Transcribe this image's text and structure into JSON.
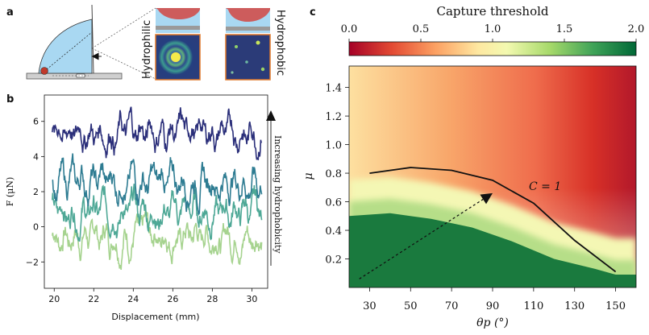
{
  "panels": {
    "a": {
      "letter": "a",
      "label_hydrophilic": "Hydrophilic",
      "label_hydrophobic": "Hydrophobic"
    },
    "b": {
      "letter": "b",
      "xlabel": "Displacement (mm)",
      "ylabel": "F (μN)",
      "annotation": "Increasing hydrophobicity"
    },
    "c": {
      "letter": "c",
      "colorbar_title": "Capture threshold",
      "xlabel": "θp (°)",
      "ylabel": "μ",
      "curve_label": "C = 1"
    }
  },
  "colors": {
    "trace_1": "#a6d38f",
    "trace_2": "#4ea896",
    "trace_3": "#2e7c92",
    "trace_4": "#2b2f7a",
    "heatmap_low": "#b2182b",
    "heatmap_mid": "#ffffbf",
    "heatmap_high": "#1a7a3e",
    "droplet": "#a9d8f2",
    "particle": "#c0392b"
  },
  "chart_data": [
    {
      "type": "line",
      "panel": "b",
      "x_range": [
        19.5,
        30.8
      ],
      "ylim": [
        -3.5,
        7.5
      ],
      "xticks": [
        "20",
        "22",
        "24",
        "26",
        "28",
        "30"
      ],
      "yticks": [
        "−2",
        "0",
        "2",
        "4",
        "6"
      ],
      "xlabel": "Displacement (mm)",
      "ylabel": "F (μN)",
      "series": [
        {
          "mean": -0.5,
          "amplitude": 1.1,
          "color": "#a6d38f"
        },
        {
          "mean": 0.9,
          "amplitude": 1.2,
          "color": "#4ea896"
        },
        {
          "mean": 2.6,
          "amplitude": 1.2,
          "color": "#2e7c92"
        },
        {
          "mean": 5.4,
          "amplitude": 1.1,
          "color": "#2b2f7a"
        }
      ]
    },
    {
      "type": "heatmap",
      "panel": "c",
      "x_range": [
        20,
        160
      ],
      "ylim": [
        0,
        1.55
      ],
      "xticks": [
        "30",
        "50",
        "70",
        "90",
        "110",
        "130",
        "150"
      ],
      "yticks": [
        "0.2",
        "0.4",
        "0.6",
        "0.8",
        "1.0",
        "1.2",
        "1.4"
      ],
      "xlabel": "θp (°)",
      "ylabel": "μ",
      "colorbar": {
        "label": "Capture threshold",
        "range": [
          0.0,
          2.0
        ],
        "ticks": [
          "0.0",
          "0.5",
          "1.0",
          "1.5",
          "2.0"
        ],
        "colormap": "RdYlGn"
      },
      "contour_C1": {
        "x": [
          30,
          50,
          70,
          90,
          110,
          130,
          150
        ],
        "y": [
          0.8,
          0.84,
          0.82,
          0.75,
          0.59,
          0.33,
          0.11
        ]
      },
      "boundary_green": {
        "x": [
          20,
          40,
          60,
          80,
          100,
          120,
          140,
          150,
          160
        ],
        "y": [
          0.5,
          0.52,
          0.48,
          0.42,
          0.32,
          0.2,
          0.13,
          0.09,
          0.09
        ]
      },
      "arrow": {
        "from": [
          25,
          0.06
        ],
        "to": [
          90,
          0.66
        ]
      }
    }
  ]
}
